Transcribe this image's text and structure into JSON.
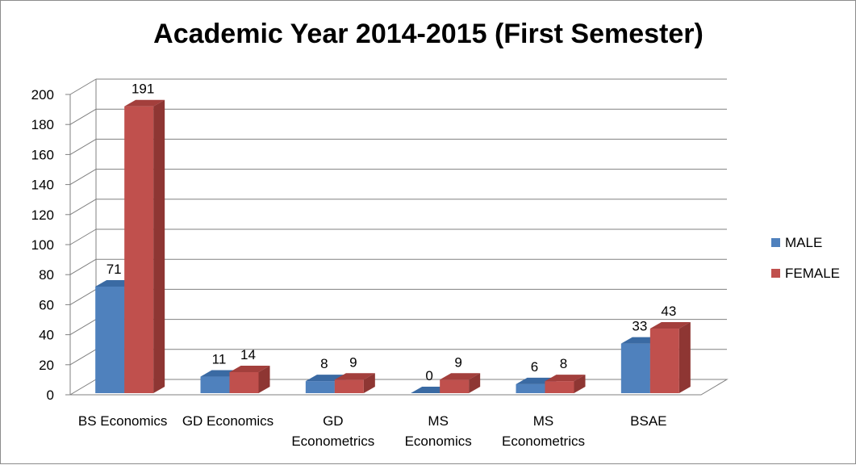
{
  "chart_data": {
    "type": "bar",
    "title": "Academic Year 2014-2015 (First Semester)",
    "categories": [
      [
        "BS Economics"
      ],
      [
        "GD Economics"
      ],
      [
        "GD",
        "Econometrics"
      ],
      [
        "MS",
        "Economics"
      ],
      [
        "MS",
        "Econometrics"
      ],
      [
        "BSAE"
      ]
    ],
    "series": [
      {
        "name": "MALE",
        "values": [
          71,
          11,
          8,
          0,
          6,
          33
        ],
        "color": "#4f81bd",
        "top": "#3a6aa3",
        "side": "#2f5a8f"
      },
      {
        "name": "FEMALE",
        "values": [
          191,
          14,
          9,
          9,
          8,
          43
        ],
        "color": "#c0504d",
        "top": "#a33f3c",
        "side": "#8e3633"
      }
    ],
    "ylim": [
      0,
      200
    ],
    "yticks": [
      "0",
      "20",
      "40",
      "60",
      "80",
      "100",
      "120",
      "140",
      "160",
      "180",
      "200"
    ],
    "grid": true,
    "legend_position": "right",
    "style_3d": true
  }
}
